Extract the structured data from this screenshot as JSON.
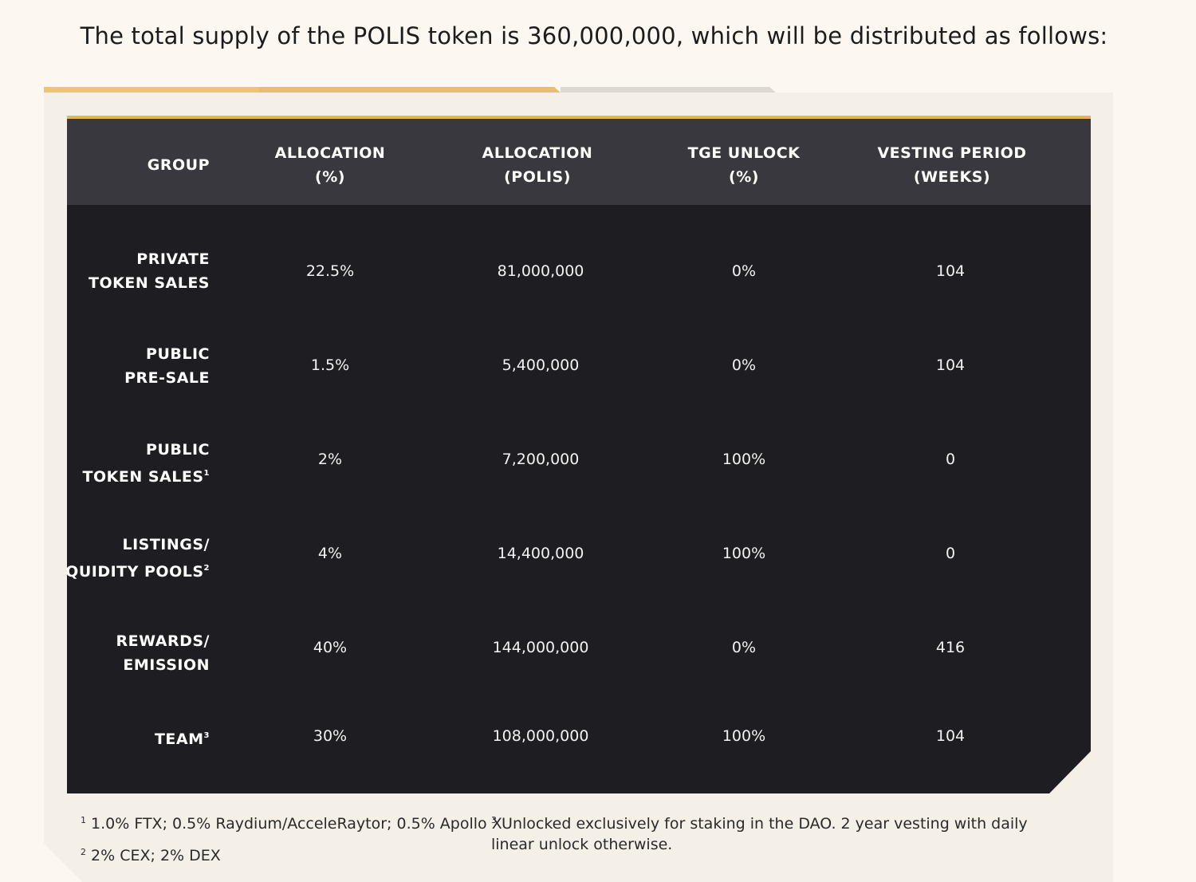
{
  "heading": "The total supply of the POLIS token is 360,000,000, which will be distributed as follows:",
  "colors": {
    "accent": "#e6b455",
    "table_bg": "#1e1e22",
    "header_bg": "#39383e",
    "page_bg": "#fcf8f1",
    "panel_bg": "#f4efe7"
  },
  "table": {
    "headers": [
      {
        "line1": "GROUP",
        "line2": ""
      },
      {
        "line1": "ALLOCATION",
        "line2": "(%)"
      },
      {
        "line1": "ALLOCATION",
        "line2": "(POLIS)"
      },
      {
        "line1": "TGE UNLOCK",
        "line2": "(%)"
      },
      {
        "line1": "VESTING PERIOD",
        "line2": "(WEEKS)"
      }
    ],
    "rows": [
      {
        "group_line1": "PRIVATE",
        "group_line2": "TOKEN SALES",
        "sup": "",
        "pct": "22.5%",
        "polis": "81,000,000",
        "tge": "0%",
        "vesting": "104"
      },
      {
        "group_line1": "PUBLIC",
        "group_line2": "PRE-SALE",
        "sup": "",
        "pct": "1.5%",
        "polis": "5,400,000",
        "tge": "0%",
        "vesting": "104"
      },
      {
        "group_line1": "PUBLIC",
        "group_line2": "TOKEN SALES",
        "sup": "1",
        "pct": "2%",
        "polis": "7,200,000",
        "tge": "100%",
        "vesting": "0"
      },
      {
        "group_line1": "LISTINGS/",
        "group_line2": "LIQUIDITY POOLS",
        "sup": "2",
        "pct": "4%",
        "polis": "14,400,000",
        "tge": "100%",
        "vesting": "0"
      },
      {
        "group_line1": "REWARDS/",
        "group_line2": "EMISSION",
        "sup": "",
        "pct": "40%",
        "polis": "144,000,000",
        "tge": "0%",
        "vesting": "416"
      },
      {
        "group_line1": "TEAM",
        "group_line2": "",
        "sup": "3",
        "pct": "30%",
        "polis": "108,000,000",
        "tge": "100%",
        "vesting": "104"
      }
    ]
  },
  "footnotes": [
    {
      "mark": "1",
      "text": "1.0% FTX; 0.5% Raydium/AcceleRaytor; 0.5% Apollo X"
    },
    {
      "mark": "2",
      "text": "2% CEX; 2% DEX"
    },
    {
      "mark": "3",
      "line1": "Unlocked exclusively for staking in the DAO. 2 year vesting with daily",
      "line2": "linear unlock otherwise."
    }
  ]
}
